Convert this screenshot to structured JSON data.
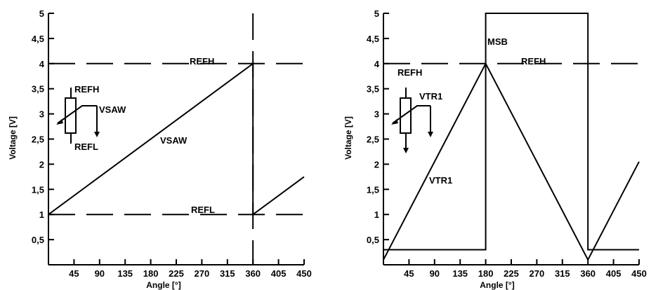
{
  "chart_data": [
    {
      "type": "line",
      "xlabel": "Angle [°]",
      "ylabel": "Voltage [V]",
      "xlim": [
        0,
        450
      ],
      "ylim": [
        0,
        5
      ],
      "x_ticks": [
        "45",
        "90",
        "135",
        "180",
        "225",
        "270",
        "315",
        "360",
        "405",
        "450"
      ],
      "y_ticks": [
        "0,5",
        "1",
        "1,5",
        "2",
        "2,5",
        "3",
        "3,5",
        "4",
        "4,5",
        "5"
      ],
      "series": [
        {
          "name": "VSAW",
          "x": [
            0,
            360,
            360,
            450
          ],
          "y": [
            1,
            4,
            1,
            1.75
          ]
        }
      ],
      "reference_lines": [
        {
          "label": "REFH",
          "y": 4
        },
        {
          "label": "REFL",
          "y": 1
        }
      ],
      "vertical_lines": [
        {
          "x": 360
        }
      ],
      "annotations": {
        "curve_label": "VSAW",
        "inset_top": "REFH",
        "inset_wiper": "VSAW",
        "inset_bottom": "REFL"
      }
    },
    {
      "type": "line",
      "xlabel": "Angle [°]",
      "ylabel": "Voltage [V]",
      "xlim": [
        0,
        450
      ],
      "ylim": [
        0,
        5
      ],
      "x_ticks": [
        "45",
        "90",
        "135",
        "180",
        "225",
        "270",
        "315",
        "360",
        "405",
        "450"
      ],
      "y_ticks": [
        "0,5",
        "1",
        "1,5",
        "2",
        "2,5",
        "3",
        "3,5",
        "4",
        "4,5",
        "5"
      ],
      "series": [
        {
          "name": "VTR1",
          "x": [
            0,
            180,
            360,
            450
          ],
          "y": [
            0.1,
            4,
            0.1,
            2.05
          ]
        },
        {
          "name": "MSB",
          "x": [
            0,
            180,
            180,
            360,
            360,
            450
          ],
          "y": [
            0.3,
            0.3,
            5,
            5,
            0.3,
            0.3
          ]
        }
      ],
      "reference_lines": [
        {
          "label": "REFH",
          "y": 4
        }
      ],
      "annotations": {
        "curve_label": "VTR1",
        "msb_label": "MSB",
        "inset_top": "REFH",
        "inset_wiper": "VTR1"
      }
    }
  ]
}
